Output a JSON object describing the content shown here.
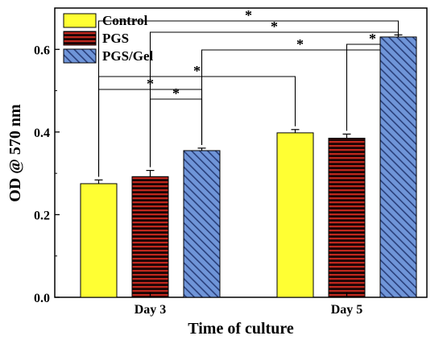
{
  "chart_data": {
    "type": "bar",
    "categories": [
      "Day 3",
      "Day 5"
    ],
    "series": [
      {
        "name": "Control",
        "values": [
          0.275,
          0.398
        ],
        "errors": [
          0.009,
          0.008
        ],
        "color": "#ffff33",
        "pattern": "solid"
      },
      {
        "name": "PGS",
        "values": [
          0.292,
          0.385
        ],
        "errors": [
          0.015,
          0.01
        ],
        "color": "#7a1f1f",
        "pattern": "horizontal-red-lines"
      },
      {
        "name": "PGS/Gel",
        "values": [
          0.355,
          0.63
        ],
        "errors": [
          0.006,
          0.005
        ],
        "color": "#6f95d8",
        "pattern": "diagonal-hatch"
      }
    ],
    "xlabel": "Time of culture",
    "ylabel": "OD @ 570 nm",
    "ylim": [
      0,
      0.7
    ],
    "yticks": [
      "0.0",
      "0.2",
      "0.4",
      "0.6"
    ],
    "legend_position": "top-left",
    "significance_marker": "*",
    "significance_brackets": [
      {
        "from": "Day 3 Control",
        "to": "Day 5 PGS/Gel"
      },
      {
        "from": "Day 3 PGS",
        "to": "Day 5 PGS/Gel"
      },
      {
        "from": "Day 5 PGS",
        "to": "Day 5 PGS/Gel"
      },
      {
        "from": "Day 3 PGS/Gel",
        "to": "Day 5 PGS/Gel"
      },
      {
        "from": "Day 3 Control",
        "to": "Day 5 Control"
      },
      {
        "from": "Day 3 Control",
        "to": "Day 3 PGS/Gel"
      },
      {
        "from": "Day 3 PGS",
        "to": "Day 3 PGS/Gel"
      }
    ]
  }
}
